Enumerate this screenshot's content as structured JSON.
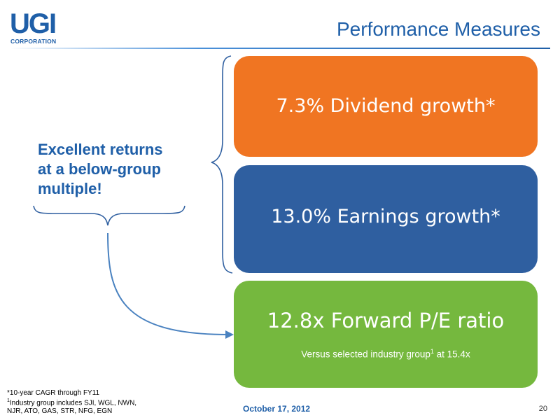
{
  "logo": {
    "main": "UGI",
    "sub": "CORPORATION"
  },
  "title": "Performance Measures",
  "callout": {
    "line1": "Excellent returns",
    "line2": "at a below-group",
    "line3": "multiple!"
  },
  "boxes": [
    {
      "text": "7.3% Dividend growth*",
      "color": "#f07522"
    },
    {
      "text": "13.0% Earnings growth*",
      "color": "#2f5fa0"
    },
    {
      "text": "12.8x Forward P/E ratio",
      "sub_prefix": "Versus selected industry group",
      "sub_sup": "1",
      "sub_suffix": " at  15.4x",
      "color": "#75b83e"
    }
  ],
  "footnotes": {
    "line1": "*10-year CAGR through FY11",
    "line2_sup": "1",
    "line2": "Industry group includes SJI, WGL, NWN,",
    "line3": "NJR, ATO, GAS, STR, NFG, EGN"
  },
  "date": "October 17, 2012",
  "page_number": "20"
}
